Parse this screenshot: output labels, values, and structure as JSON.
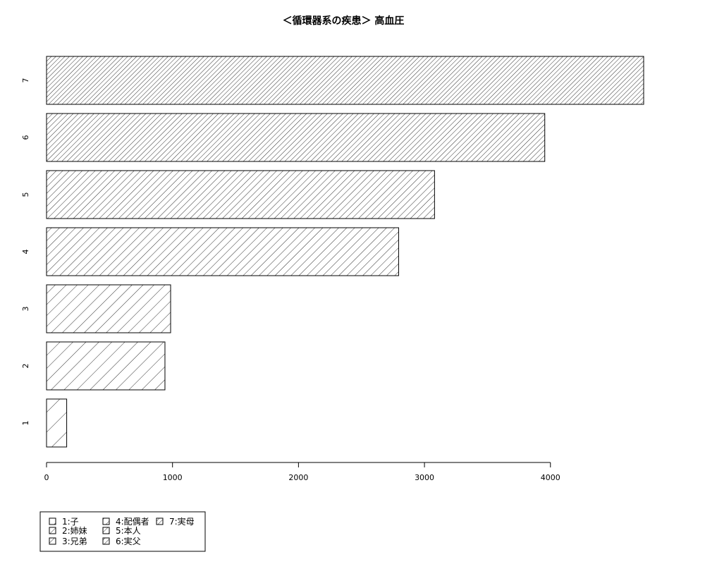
{
  "chart_data": {
    "type": "bar",
    "orientation": "horizontal",
    "title": "＜循環器系の疾患＞ 高血圧",
    "xlabel": "",
    "ylabel": "",
    "categories": [
      "1",
      "2",
      "3",
      "4",
      "5",
      "6",
      "7"
    ],
    "values": [
      160,
      940,
      985,
      2795,
      3080,
      3955,
      4740
    ],
    "xlim": [
      0,
      4740
    ],
    "xticks": [
      0,
      1000,
      2000,
      3000,
      4000
    ],
    "grid": false,
    "legend_position": "bottom-left",
    "legend": [
      "1:子",
      "2:姉妹",
      "3:兄弟",
      "4:配偶者",
      "5:本人",
      "6:実父",
      "7:実母"
    ]
  }
}
